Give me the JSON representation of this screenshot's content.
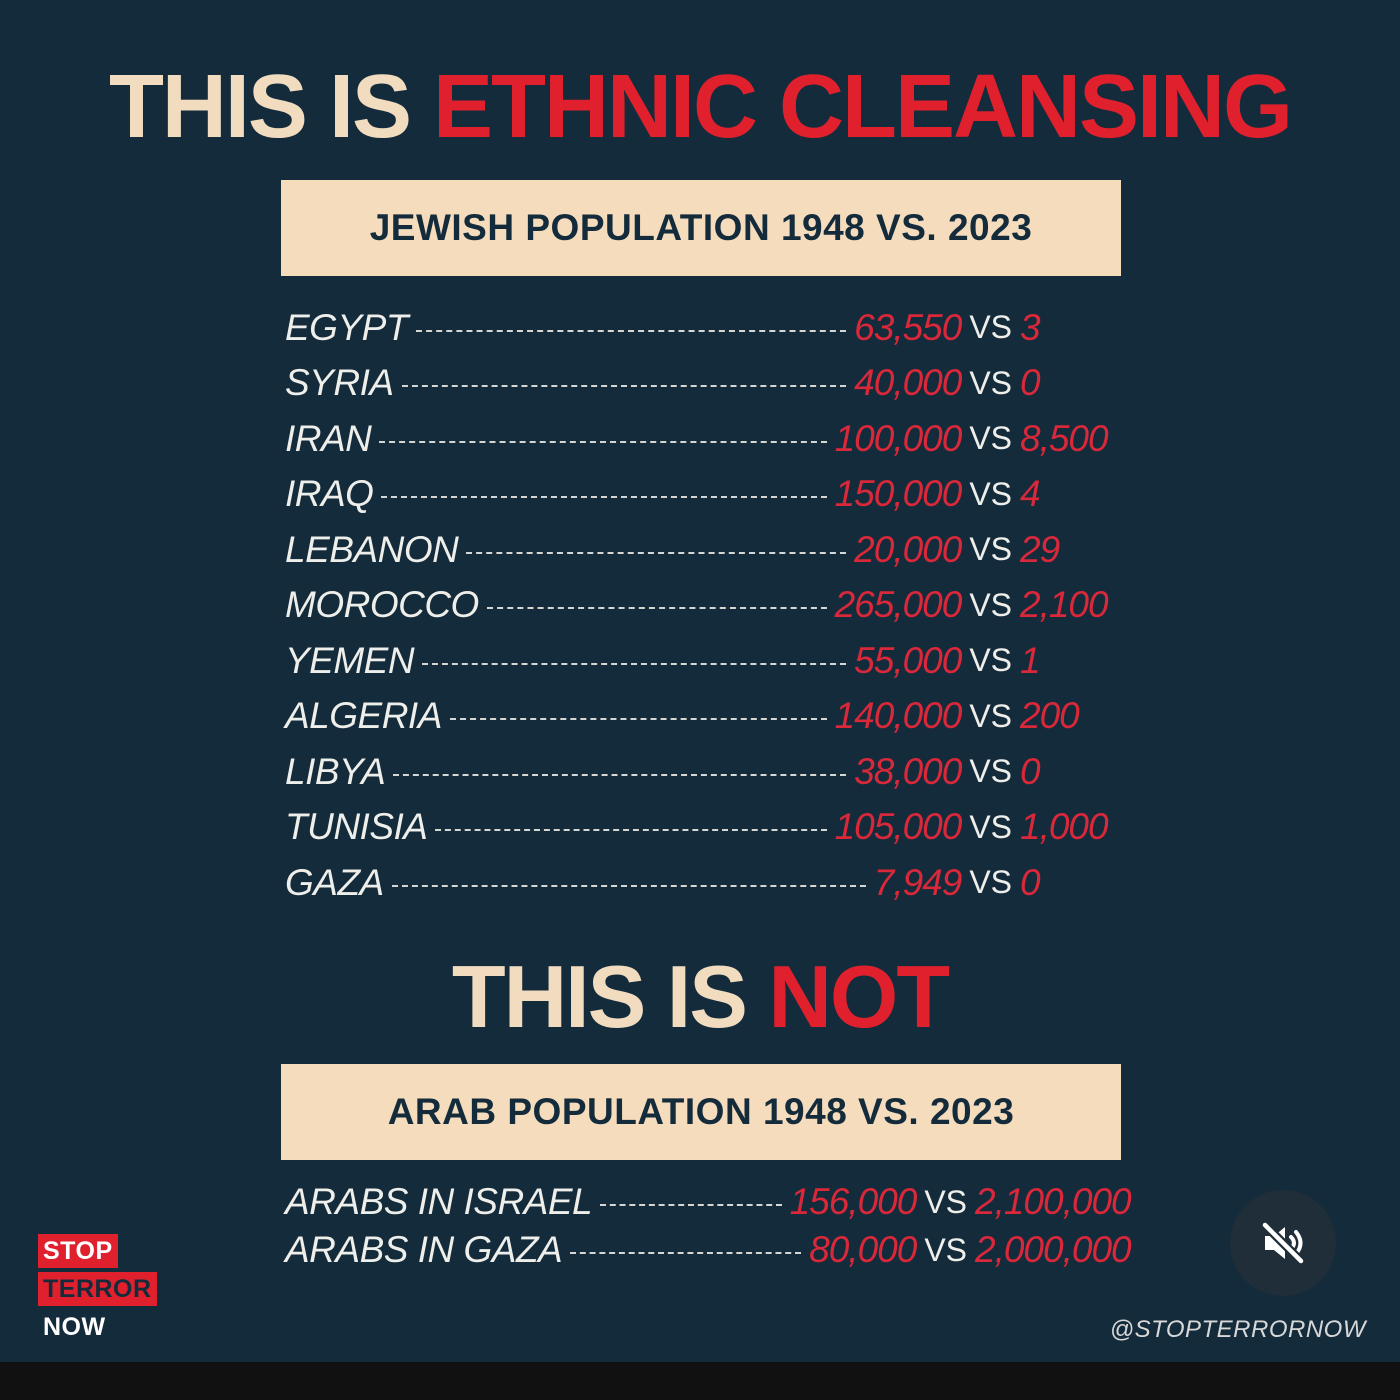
{
  "colors": {
    "background": "#142b3b",
    "cream": "#f2dcc0",
    "red": "#e0212d",
    "banner": "#f4dcbd"
  },
  "headline_1": {
    "lead": "THIS IS",
    "emphasis": "ETHNIC CLEANSING"
  },
  "banner_1": "JEWISH POPULATION 1948 VS. 2023",
  "vs_label": "VS",
  "jewish_population": [
    {
      "country": "EGYPT",
      "y1948": "63,550",
      "y2023": "3"
    },
    {
      "country": "SYRIA",
      "y1948": "40,000",
      "y2023": "0"
    },
    {
      "country": "IRAN",
      "y1948": "100,000",
      "y2023": "8,500"
    },
    {
      "country": "IRAQ",
      "y1948": "150,000",
      "y2023": "4"
    },
    {
      "country": "LEBANON",
      "y1948": "20,000",
      "y2023": "29"
    },
    {
      "country": "MOROCCO",
      "y1948": "265,000",
      "y2023": "2,100"
    },
    {
      "country": "YEMEN",
      "y1948": "55,000",
      "y2023": "1"
    },
    {
      "country": "ALGERIA",
      "y1948": "140,000",
      "y2023": "200"
    },
    {
      "country": "LIBYA",
      "y1948": "38,000",
      "y2023": "0"
    },
    {
      "country": "TUNISIA",
      "y1948": "105,000",
      "y2023": "1,000"
    },
    {
      "country": "GAZA",
      "y1948": "7,949",
      "y2023": "0"
    }
  ],
  "headline_2": {
    "lead": "THIS IS",
    "emphasis": "NOT"
  },
  "banner_2": "ARAB POPULATION 1948 VS. 2023",
  "arab_population": [
    {
      "country": "ARABS IN ISRAEL",
      "y1948": "156,000",
      "y2023": "2,100,000"
    },
    {
      "country": "ARABS IN GAZA",
      "y1948": "80,000",
      "y2023": "2,000,000"
    }
  ],
  "logo": {
    "line1": "STOP",
    "line2": "TERROR",
    "line3": "NOW"
  },
  "handle": "@STOPTERRORNOW",
  "mute_icon": "speaker-muted-icon"
}
